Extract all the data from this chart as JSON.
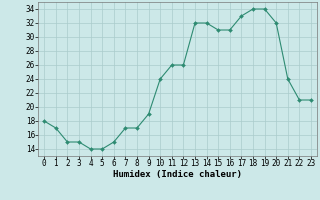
{
  "xlabel": "Humidex (Indice chaleur)",
  "x_values": [
    0,
    1,
    2,
    3,
    4,
    5,
    6,
    7,
    8,
    9,
    10,
    11,
    12,
    13,
    14,
    15,
    16,
    17,
    18,
    19,
    20,
    21,
    22,
    23
  ],
  "y_values": [
    18,
    17,
    15,
    15,
    14,
    14,
    15,
    17,
    17,
    19,
    24,
    26,
    26,
    32,
    32,
    31,
    31,
    33,
    34,
    34,
    32,
    24,
    21,
    21
  ],
  "ylim": [
    13,
    35
  ],
  "yticks": [
    14,
    16,
    18,
    20,
    22,
    24,
    26,
    28,
    30,
    32,
    34
  ],
  "line_color": "#2e8b72",
  "marker_color": "#2e8b72",
  "bg_color": "#cce8e8",
  "grid_color": "#aacccc",
  "tick_fontsize": 5.5,
  "xlabel_fontsize": 6.5
}
